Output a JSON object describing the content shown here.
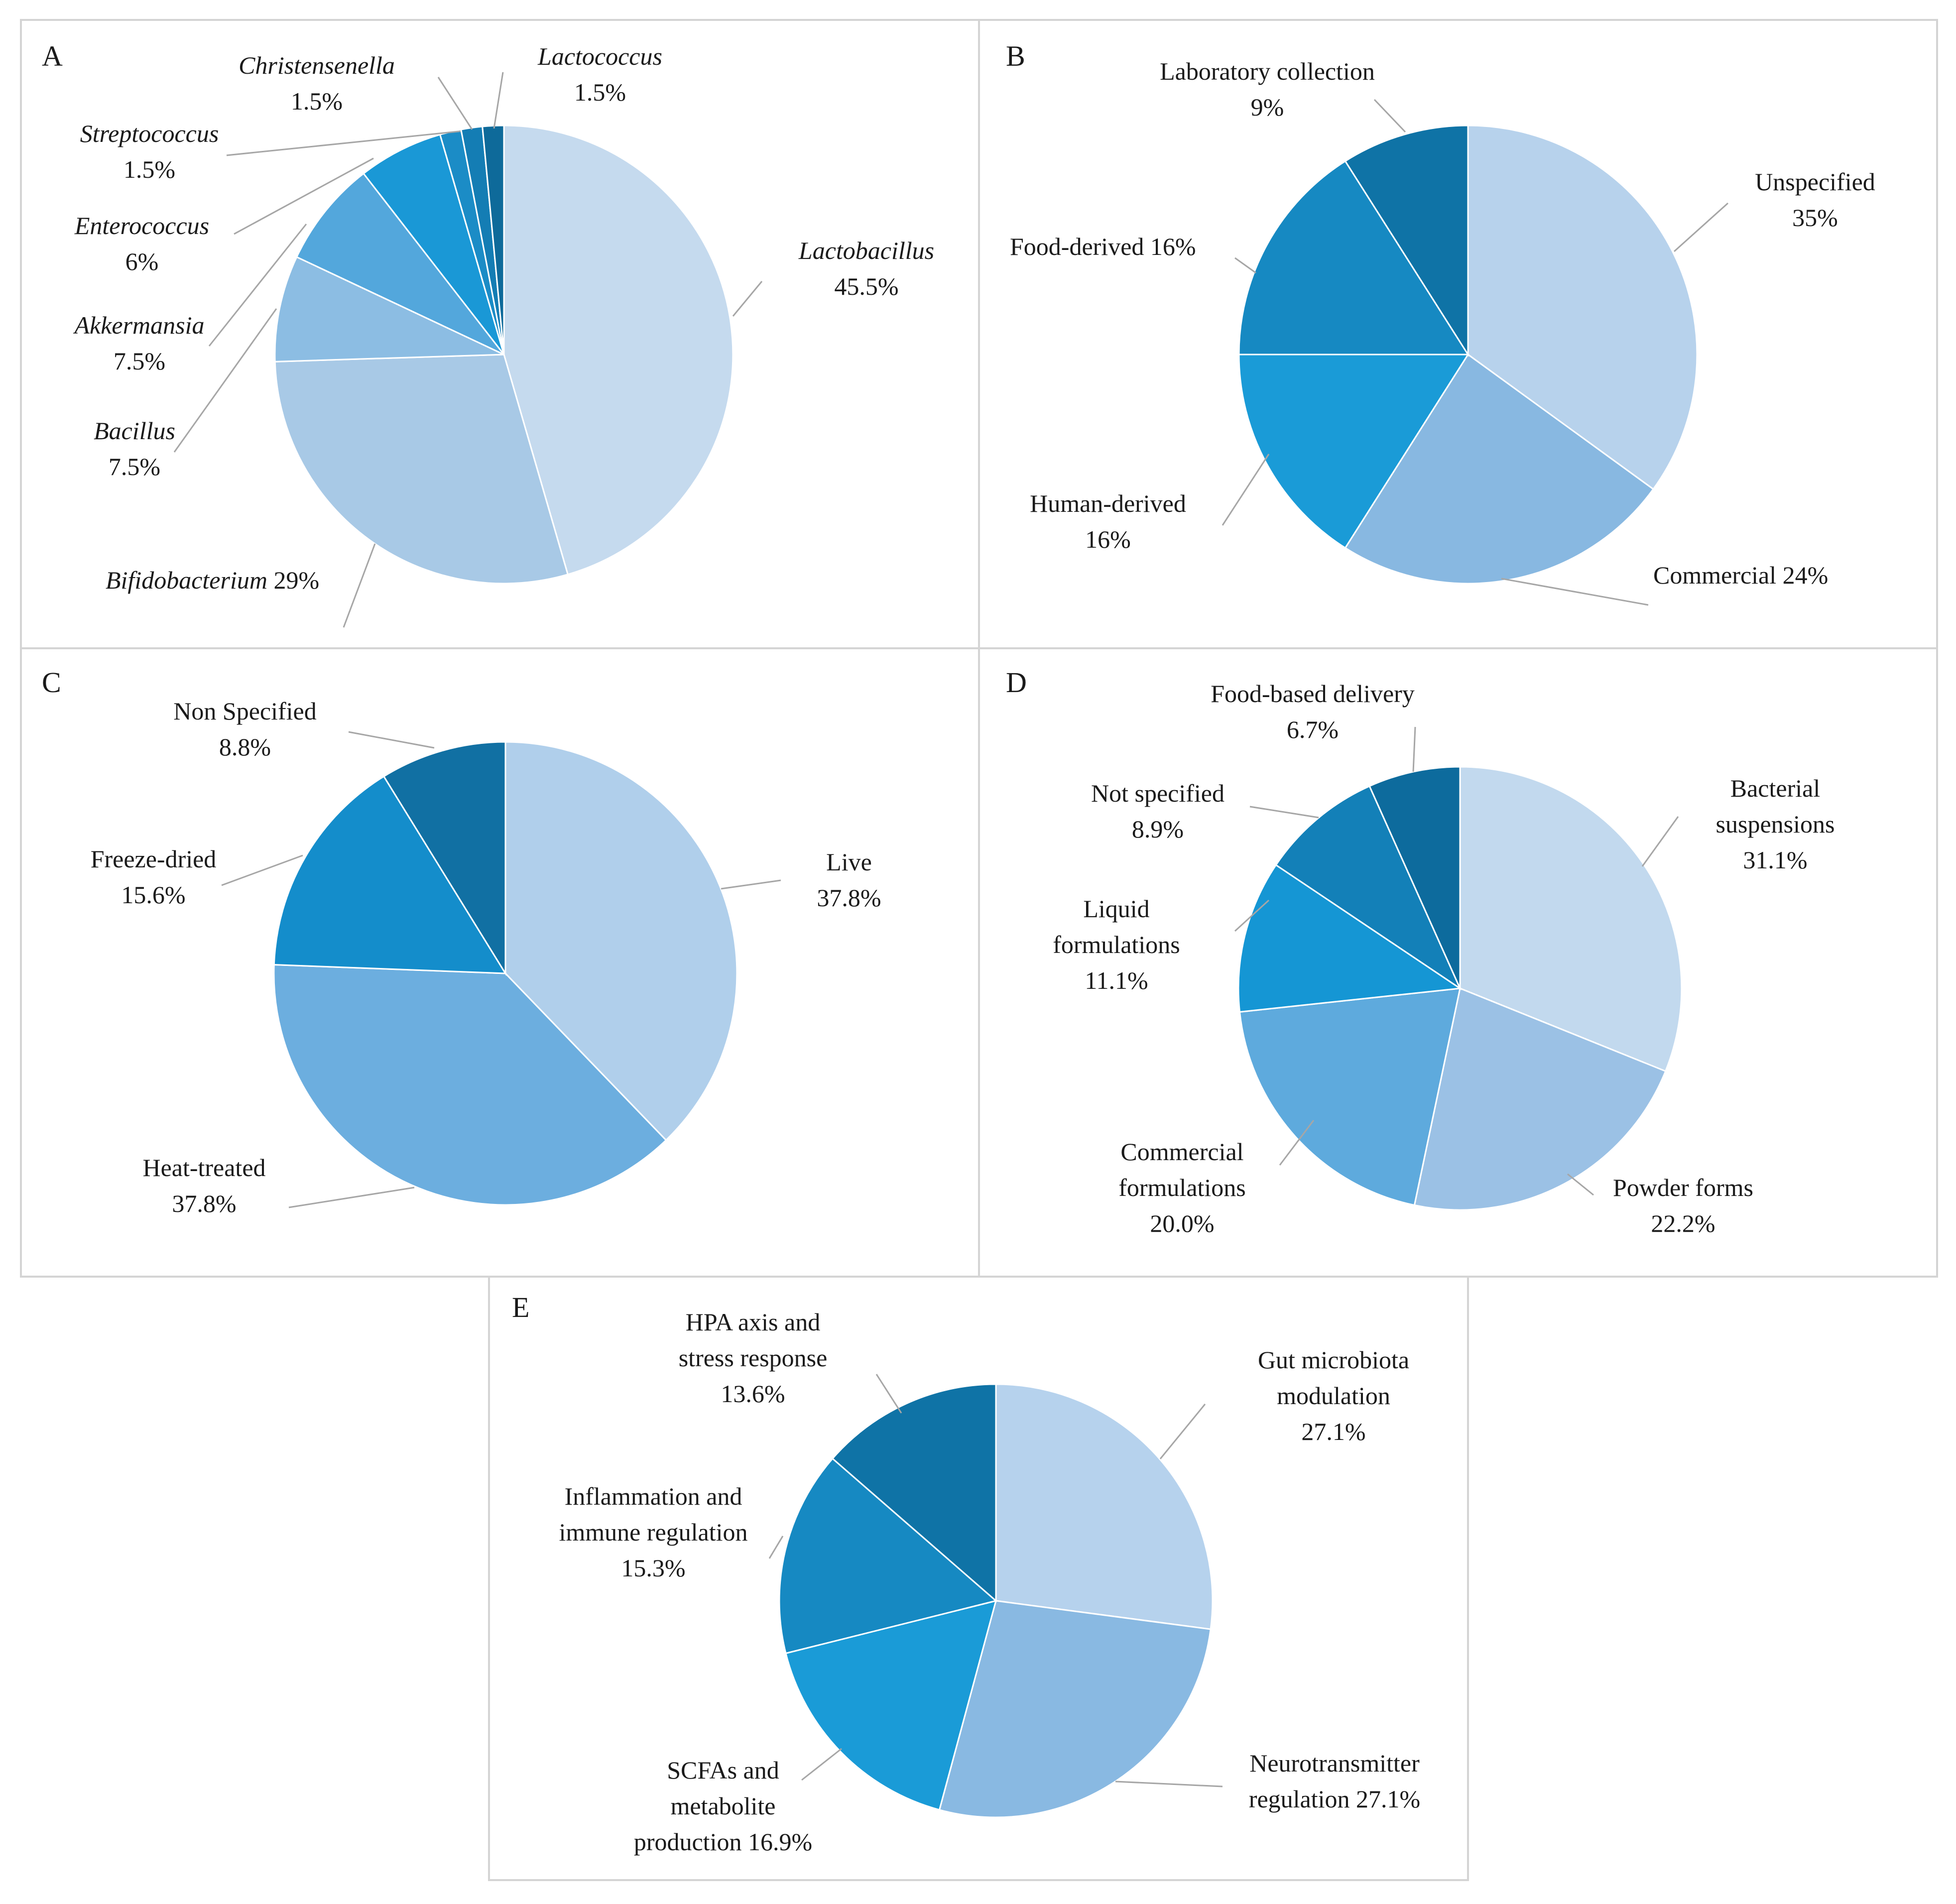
{
  "chart_data": [
    {
      "type": "pie",
      "panel_label": "A",
      "label_style": "italic",
      "slices": [
        {
          "label": "Lactobacillus",
          "value_text": "45.5%",
          "value": 45.5,
          "color": "#c5daee"
        },
        {
          "label": "Bifidobacterium",
          "value_text": "29%",
          "value": 29,
          "color": "#a8c9e6"
        },
        {
          "label": "Bacillus",
          "value_text": "7.5%",
          "value": 7.5,
          "color": "#8cbde3"
        },
        {
          "label": "Akkermansia",
          "value_text": "7.5%",
          "value": 7.5,
          "color": "#53a7dc"
        },
        {
          "label": "Enterococcus",
          "value_text": "6%",
          "value": 6,
          "color": "#1a98d6"
        },
        {
          "label": "Streptococcus",
          "value_text": "1.5%",
          "value": 1.5,
          "color": "#1b8cc6"
        },
        {
          "label": "Christensenella",
          "value_text": "1.5%",
          "value": 1.5,
          "color": "#147db4"
        },
        {
          "label": "Lactococcus",
          "value_text": "1.5%",
          "value": 1.5,
          "color": "#0e6a9a"
        }
      ]
    },
    {
      "type": "pie",
      "panel_label": "B",
      "label_style": "normal",
      "slices": [
        {
          "label": "Unspecified",
          "value_text": "35%",
          "value": 35,
          "color": "#b7d2ec"
        },
        {
          "label": "Commercial",
          "value_text": "24%",
          "value": 24,
          "color": "#88b8e1"
        },
        {
          "label": "Human-derived",
          "value_text": "16%",
          "value": 16,
          "color": "#1a9bd7"
        },
        {
          "label": "Food-derived",
          "value_text": "16%",
          "value": 16,
          "color": "#1689c2"
        },
        {
          "label": "Laboratory collection",
          "value_text": "9%",
          "value": 9,
          "color": "#0f73a6"
        }
      ]
    },
    {
      "type": "pie",
      "panel_label": "C",
      "label_style": "normal",
      "slices": [
        {
          "label": "Live",
          "value_text": "37.8%",
          "value": 37.8,
          "color": "#b0cfeb"
        },
        {
          "label": "Heat-treated",
          "value_text": "37.8%",
          "value": 37.8,
          "color": "#6caedf"
        },
        {
          "label": "Freeze-dried",
          "value_text": "15.6%",
          "value": 15.6,
          "color": "#148dcb"
        },
        {
          "label": "Non Specified",
          "value_text": "8.8%",
          "value": 8.8,
          "color": "#1170a3"
        }
      ]
    },
    {
      "type": "pie",
      "panel_label": "D",
      "label_style": "normal",
      "slices": [
        {
          "label": "Bacterial suspensions",
          "value_text": "31.1%",
          "value": 31.1,
          "color": "#c2d9ee"
        },
        {
          "label": "Powder forms",
          "value_text": "22.2%",
          "value": 22.2,
          "color": "#9bc1e5"
        },
        {
          "label": "Commercial formulations",
          "value_text": "20.0%",
          "value": 20.0,
          "color": "#5eaadd"
        },
        {
          "label": "Liquid formulations",
          "value_text": "11.1%",
          "value": 11.1,
          "color": "#1596d4"
        },
        {
          "label": "Not specified",
          "value_text": "8.9%",
          "value": 8.9,
          "color": "#1380b8"
        },
        {
          "label": "Food-based delivery",
          "value_text": "6.7%",
          "value": 6.7,
          "color": "#0d6b9d"
        }
      ]
    },
    {
      "type": "pie",
      "panel_label": "E",
      "label_style": "normal",
      "slices": [
        {
          "label": "Gut microbiota modulation",
          "value_text": "27.1%",
          "value": 27.1,
          "color": "#b6d2ed"
        },
        {
          "label": "Neurotransmitter regulation",
          "value_text": "27.1%",
          "value": 27.1,
          "color": "#89b9e2"
        },
        {
          "label": "SCFAs and metabolite production",
          "value_text": "16.9%",
          "value": 16.9,
          "color": "#1a9bd7"
        },
        {
          "label": "Inflammation and immune regulation",
          "value_text": "15.3%",
          "value": 15.3,
          "color": "#1689c2"
        },
        {
          "label": "HPA axis and stress response",
          "value_text": "13.6%",
          "value": 13.6,
          "color": "#0f73a6"
        }
      ]
    }
  ]
}
